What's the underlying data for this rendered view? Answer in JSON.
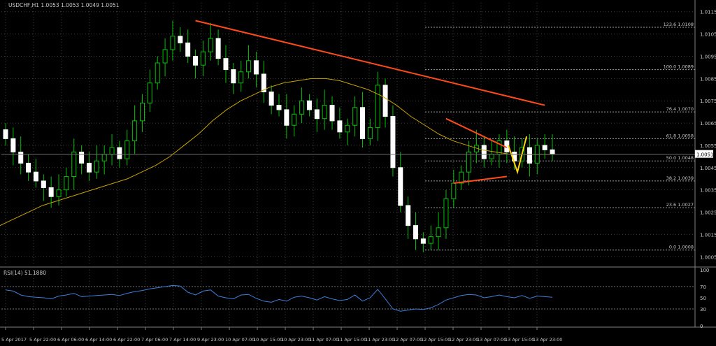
{
  "header": {
    "symbol_line": "USDCHF,H1  1.0053 1.0053 1.0049 1.0051"
  },
  "colors": {
    "background": "#000000",
    "candle": "#00c000",
    "grid": "#404040",
    "ma": "#c8a400",
    "trendline": "#ff4a1a",
    "projection": "#ffd700",
    "rsi": "#3d7fd8",
    "axis_text": "#c8c8c8"
  },
  "chart_data": [
    {
      "type": "candlestick",
      "title": "USDCHF,H1",
      "ohlc_last": {
        "open": 1.0053,
        "high": 1.0053,
        "low": 1.0049,
        "close": 1.0051
      },
      "current_price_label": "1.0051",
      "ylim": [
        1.0001,
        1.0119
      ],
      "y_ticks": [
        "1.0115",
        "1.0105",
        "1.0095",
        "1.0085",
        "1.0075",
        "1.0065",
        "1.0055",
        "1.0045",
        "1.0035",
        "1.0025",
        "1.0015",
        "1.0005"
      ],
      "x_tick_labels": [
        "5 Apr 2017",
        "5 Apr 22:00",
        "6 Apr 06:00",
        "6 Apr 14:00",
        "6 Apr 22:00",
        "7 Apr 06:00",
        "7 Apr 14:00",
        "9 Apr 23:00",
        "10 Apr 07:00",
        "10 Apr 15:00",
        "10 Apr 23:00",
        "11 Apr 07:00",
        "11 Apr 15:00",
        "11 Apr 23:00",
        "12 Apr 07:00",
        "12 Apr 15:00",
        "12 Apr 23:00",
        "13 Apr 07:00",
        "13 Apr 15:00",
        "13 Apr 23:00"
      ],
      "grid": true,
      "fibonacci_levels": [
        {
          "label": "123.6",
          "value": 1.0108
        },
        {
          "label": "100.0",
          "value": 1.0089
        },
        {
          "label": "76.4",
          "value": 1.007
        },
        {
          "label": "61.8",
          "value": 1.0058
        },
        {
          "label": "50.0",
          "value": 1.0048
        },
        {
          "label": "38.2",
          "value": 1.0039
        },
        {
          "label": "23.6",
          "value": 1.0027
        },
        {
          "label": "0.0",
          "value": 1.0008
        }
      ],
      "fib_label_template": "{label} {value}",
      "close_series": [
        1.0058,
        1.0052,
        1.0047,
        1.0043,
        1.0039,
        1.0036,
        1.0032,
        1.0035,
        1.0041,
        1.0052,
        1.0047,
        1.0043,
        1.0048,
        1.0051,
        1.0054,
        1.0049,
        1.0057,
        1.0066,
        1.0074,
        1.0083,
        1.0092,
        1.0098,
        1.0104,
        1.0101,
        1.0095,
        1.0091,
        1.0097,
        1.0103,
        1.0094,
        1.0089,
        1.0083,
        1.0088,
        1.0093,
        1.0087,
        1.0079,
        1.0073,
        1.0071,
        1.0064,
        1.0069,
        1.0075,
        1.0071,
        1.0067,
        1.0073,
        1.0066,
        1.0061,
        1.0064,
        1.0072,
        1.0058,
        1.0063,
        1.0082,
        1.0068,
        1.0045,
        1.0028,
        1.0019,
        1.0013,
        1.0011,
        1.0014,
        1.0018,
        1.0031,
        1.0038,
        1.0043,
        1.0052,
        1.0055,
        1.0049,
        1.0051,
        1.0057,
        1.0052,
        1.0048,
        1.0054,
        1.0047,
        1.0055,
        1.0053,
        1.0051
      ],
      "moving_average_series": [
        1.0019,
        1.0022,
        1.0025,
        1.0028,
        1.003,
        1.0032,
        1.0034,
        1.0036,
        1.0038,
        1.004,
        1.0043,
        1.0046,
        1.005,
        1.0055,
        1.006,
        1.0066,
        1.0071,
        1.0075,
        1.0078,
        1.0081,
        1.0083,
        1.0084,
        1.0085,
        1.0085,
        1.0084,
        1.0082,
        1.008,
        1.0077,
        1.0073,
        1.0068,
        1.0064,
        1.006,
        1.0057,
        1.0055,
        1.0053,
        1.0052,
        1.0051,
        1.0051,
        1.0051,
        1.0051
      ],
      "trendlines": [
        {
          "name": "upper-resistance",
          "from_index": 25,
          "from_value": 1.0111,
          "to_index": 71,
          "to_value": 1.0073
        },
        {
          "name": "triangle-top",
          "from_index": 58,
          "from_value": 1.0067,
          "to_index": 66,
          "to_value": 1.0054
        },
        {
          "name": "triangle-bottom",
          "from_index": 59,
          "from_value": 1.0038,
          "to_index": 66,
          "to_value": 1.0041
        }
      ],
      "projection": [
        {
          "index": 66.2,
          "value": 1.0055
        },
        {
          "index": 67.4,
          "value": 1.0043
        },
        {
          "index": 68.6,
          "value": 1.0059
        }
      ]
    },
    {
      "type": "line",
      "title": "RSI(14) 51.1880",
      "ylim": [
        0,
        100
      ],
      "y_ticks": [
        100,
        70,
        50,
        30,
        0
      ],
      "values": [
        64,
        62,
        55,
        52,
        51,
        50,
        48,
        53,
        55,
        58,
        52,
        53,
        54,
        55,
        56,
        54,
        58,
        61,
        63,
        66,
        68,
        70,
        72,
        71,
        60,
        55,
        62,
        64,
        53,
        50,
        48,
        55,
        56,
        49,
        44,
        42,
        47,
        44,
        51,
        53,
        50,
        46,
        52,
        48,
        45,
        47,
        55,
        44,
        50,
        65,
        48,
        30,
        26,
        28,
        30,
        29,
        32,
        38,
        46,
        50,
        54,
        56,
        55,
        50,
        52,
        55,
        52,
        50,
        54,
        49,
        53,
        52,
        51
      ]
    }
  ]
}
